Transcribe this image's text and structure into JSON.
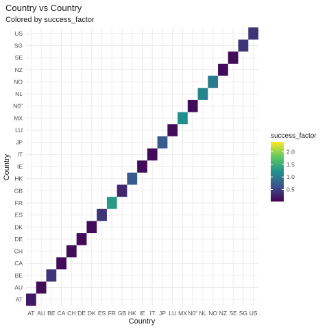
{
  "chart_data": {
    "type": "heatmap",
    "title": "Country vs Country",
    "subtitle": "Colored by success_factor",
    "xlabel": "Country",
    "ylabel": "Country",
    "categories": [
      "AT",
      "AU",
      "BE",
      "CA",
      "CH",
      "DE",
      "DK",
      "ES",
      "FR",
      "GB",
      "HK",
      "IE",
      "IT",
      "JP",
      "LU",
      "MX",
      "N0\"",
      "NL",
      "NO",
      "NZ",
      "SE",
      "SG",
      "US"
    ],
    "cells": [
      {
        "x": "AT",
        "y": "AT",
        "value": 0.2
      },
      {
        "x": "AU",
        "y": "AU",
        "value": 0.1
      },
      {
        "x": "BE",
        "y": "BE",
        "value": 0.4
      },
      {
        "x": "CA",
        "y": "CA",
        "value": 0.1
      },
      {
        "x": "CH",
        "y": "CH",
        "value": 0.1
      },
      {
        "x": "DE",
        "y": "DE",
        "value": 0.1
      },
      {
        "x": "DK",
        "y": "DK",
        "value": 0.1
      },
      {
        "x": "ES",
        "y": "ES",
        "value": 0.4
      },
      {
        "x": "FR",
        "y": "FR",
        "value": 1.3
      },
      {
        "x": "GB",
        "y": "GB",
        "value": 0.3
      },
      {
        "x": "HK",
        "y": "HK",
        "value": 0.7
      },
      {
        "x": "IE",
        "y": "IE",
        "value": 0.1
      },
      {
        "x": "IT",
        "y": "IT",
        "value": 0.1
      },
      {
        "x": "JP",
        "y": "JP",
        "value": 0.7
      },
      {
        "x": "LU",
        "y": "LU",
        "value": 0.1
      },
      {
        "x": "MX",
        "y": "MX",
        "value": 1.2
      },
      {
        "x": "N0\"",
        "y": "N0\"",
        "value": 0.1
      },
      {
        "x": "NL",
        "y": "NL",
        "value": 1.1
      },
      {
        "x": "NO",
        "y": "NO",
        "value": 1.0
      },
      {
        "x": "NZ",
        "y": "NZ",
        "value": 0.1
      },
      {
        "x": "SE",
        "y": "SE",
        "value": 0.1
      },
      {
        "x": "SG",
        "y": "SG",
        "value": 0.4
      },
      {
        "x": "US",
        "y": "US",
        "value": 0.4
      }
    ],
    "legend": {
      "title": "success_factor",
      "position": "right",
      "ticks": [
        "0.5",
        "1.0",
        "1.5",
        "2.0"
      ],
      "tick_values": [
        0.5,
        1.0,
        1.5,
        2.0
      ],
      "range": [
        0.02,
        2.4
      ],
      "palette": "viridis"
    },
    "grid": true
  }
}
